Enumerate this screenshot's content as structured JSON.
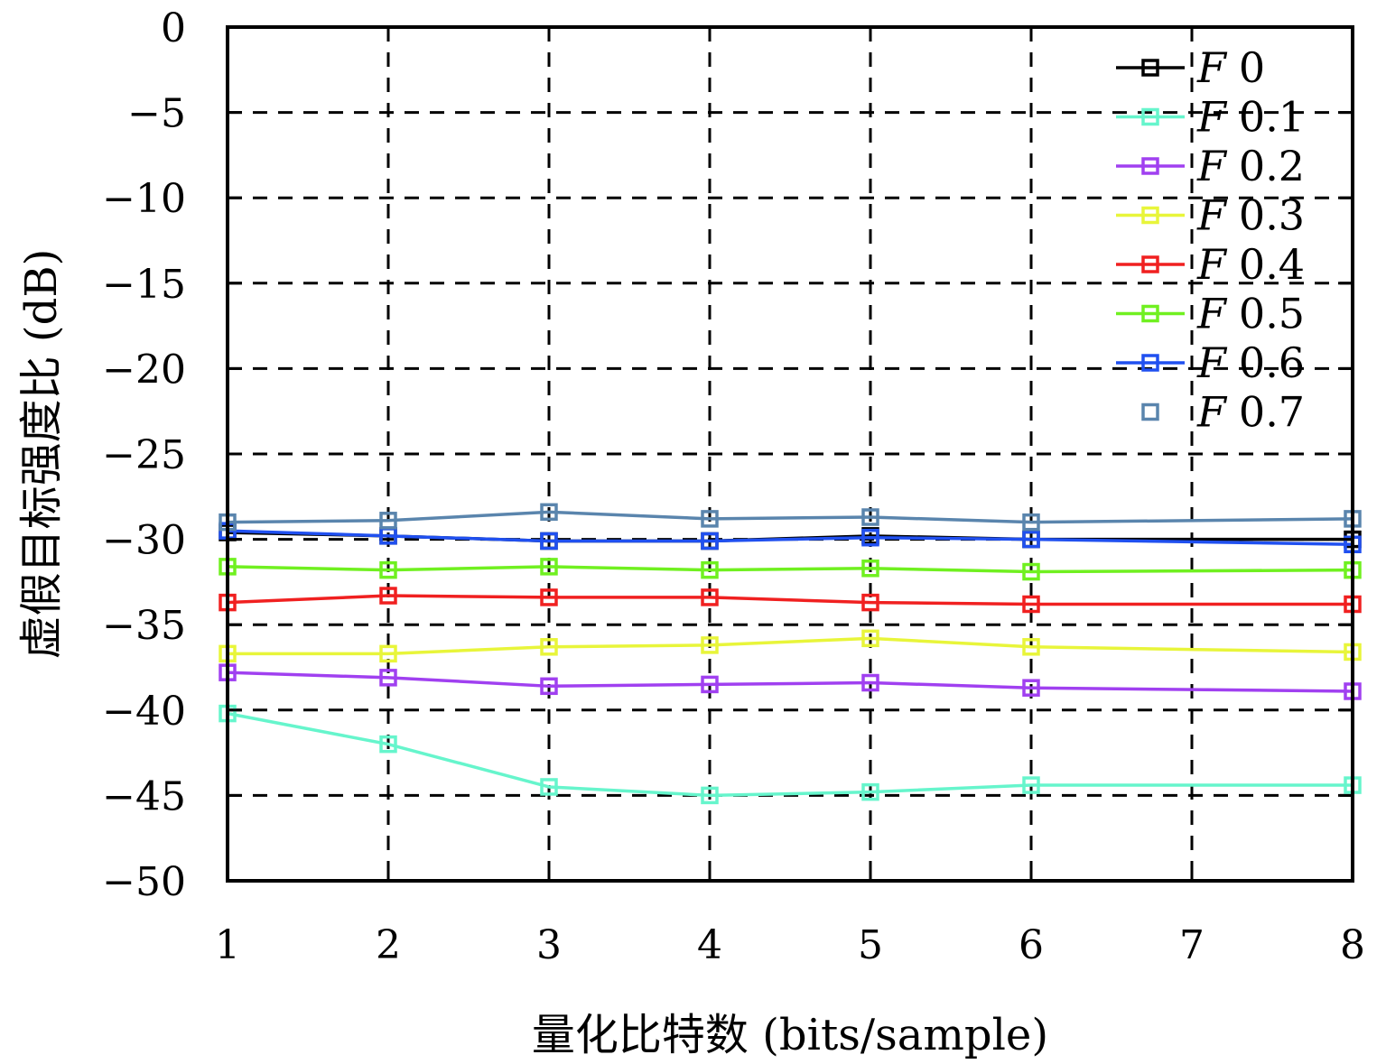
{
  "chart_data": {
    "type": "line",
    "xlabel": "量化比特数 (bits/sample)",
    "ylabel": "虚假目标强度比 (dB)",
    "xlim": [
      1,
      8
    ],
    "ylim": [
      -50,
      0
    ],
    "xticks": [
      1,
      2,
      3,
      4,
      5,
      6,
      7,
      8
    ],
    "yticks": [
      0,
      -5,
      -10,
      -15,
      -20,
      -25,
      -30,
      -35,
      -40,
      -45,
      -50
    ],
    "ytick_labels": [
      "0",
      "−5",
      "−10",
      "−15",
      "−20",
      "−25",
      "−30",
      "−35",
      "−40",
      "−45",
      "−50"
    ],
    "grid": true,
    "legend_position": "top-right",
    "x": [
      1,
      2,
      3,
      4,
      5,
      6,
      8
    ],
    "series": [
      {
        "prefix": "F",
        "name": "0",
        "color": "#000000",
        "line": true,
        "values": [
          -29.6,
          -29.8,
          -30.1,
          -30.1,
          -29.8,
          -30.0,
          -30.0
        ]
      },
      {
        "prefix": "F",
        "name": "0.1",
        "color": "#66f5cc",
        "line": true,
        "values": [
          -40.2,
          -42.0,
          -44.5,
          -45.0,
          -44.8,
          -44.4,
          -44.4
        ]
      },
      {
        "prefix": "F",
        "name": "0.2",
        "color": "#a040f0",
        "line": true,
        "values": [
          -37.8,
          -38.1,
          -38.6,
          -38.5,
          -38.4,
          -38.7,
          -38.9
        ]
      },
      {
        "prefix": "F",
        "name": "0.3",
        "color": "#e8f53a",
        "line": true,
        "values": [
          -36.7,
          -36.7,
          -36.3,
          -36.2,
          -35.8,
          -36.3,
          -36.6
        ]
      },
      {
        "prefix": "F",
        "name": "0.4",
        "color": "#f02020",
        "line": true,
        "values": [
          -33.7,
          -33.3,
          -33.4,
          -33.4,
          -33.7,
          -33.8,
          -33.8
        ]
      },
      {
        "prefix": "F",
        "name": "0.5",
        "color": "#70f020",
        "line": true,
        "values": [
          -31.6,
          -31.8,
          -31.6,
          -31.8,
          -31.7,
          -31.9,
          -31.8
        ]
      },
      {
        "prefix": "F",
        "name": "0.6",
        "color": "#2050f0",
        "line": true,
        "values": [
          -29.5,
          -29.8,
          -30.1,
          -30.1,
          -29.9,
          -30.0,
          -30.3
        ]
      },
      {
        "prefix": "F",
        "name": "0.7",
        "color": "#5a85ad",
        "line": true,
        "legend_line": false,
        "values": [
          -29.0,
          -28.9,
          -28.4,
          -28.8,
          -28.7,
          -29.0,
          -28.8
        ]
      }
    ]
  }
}
